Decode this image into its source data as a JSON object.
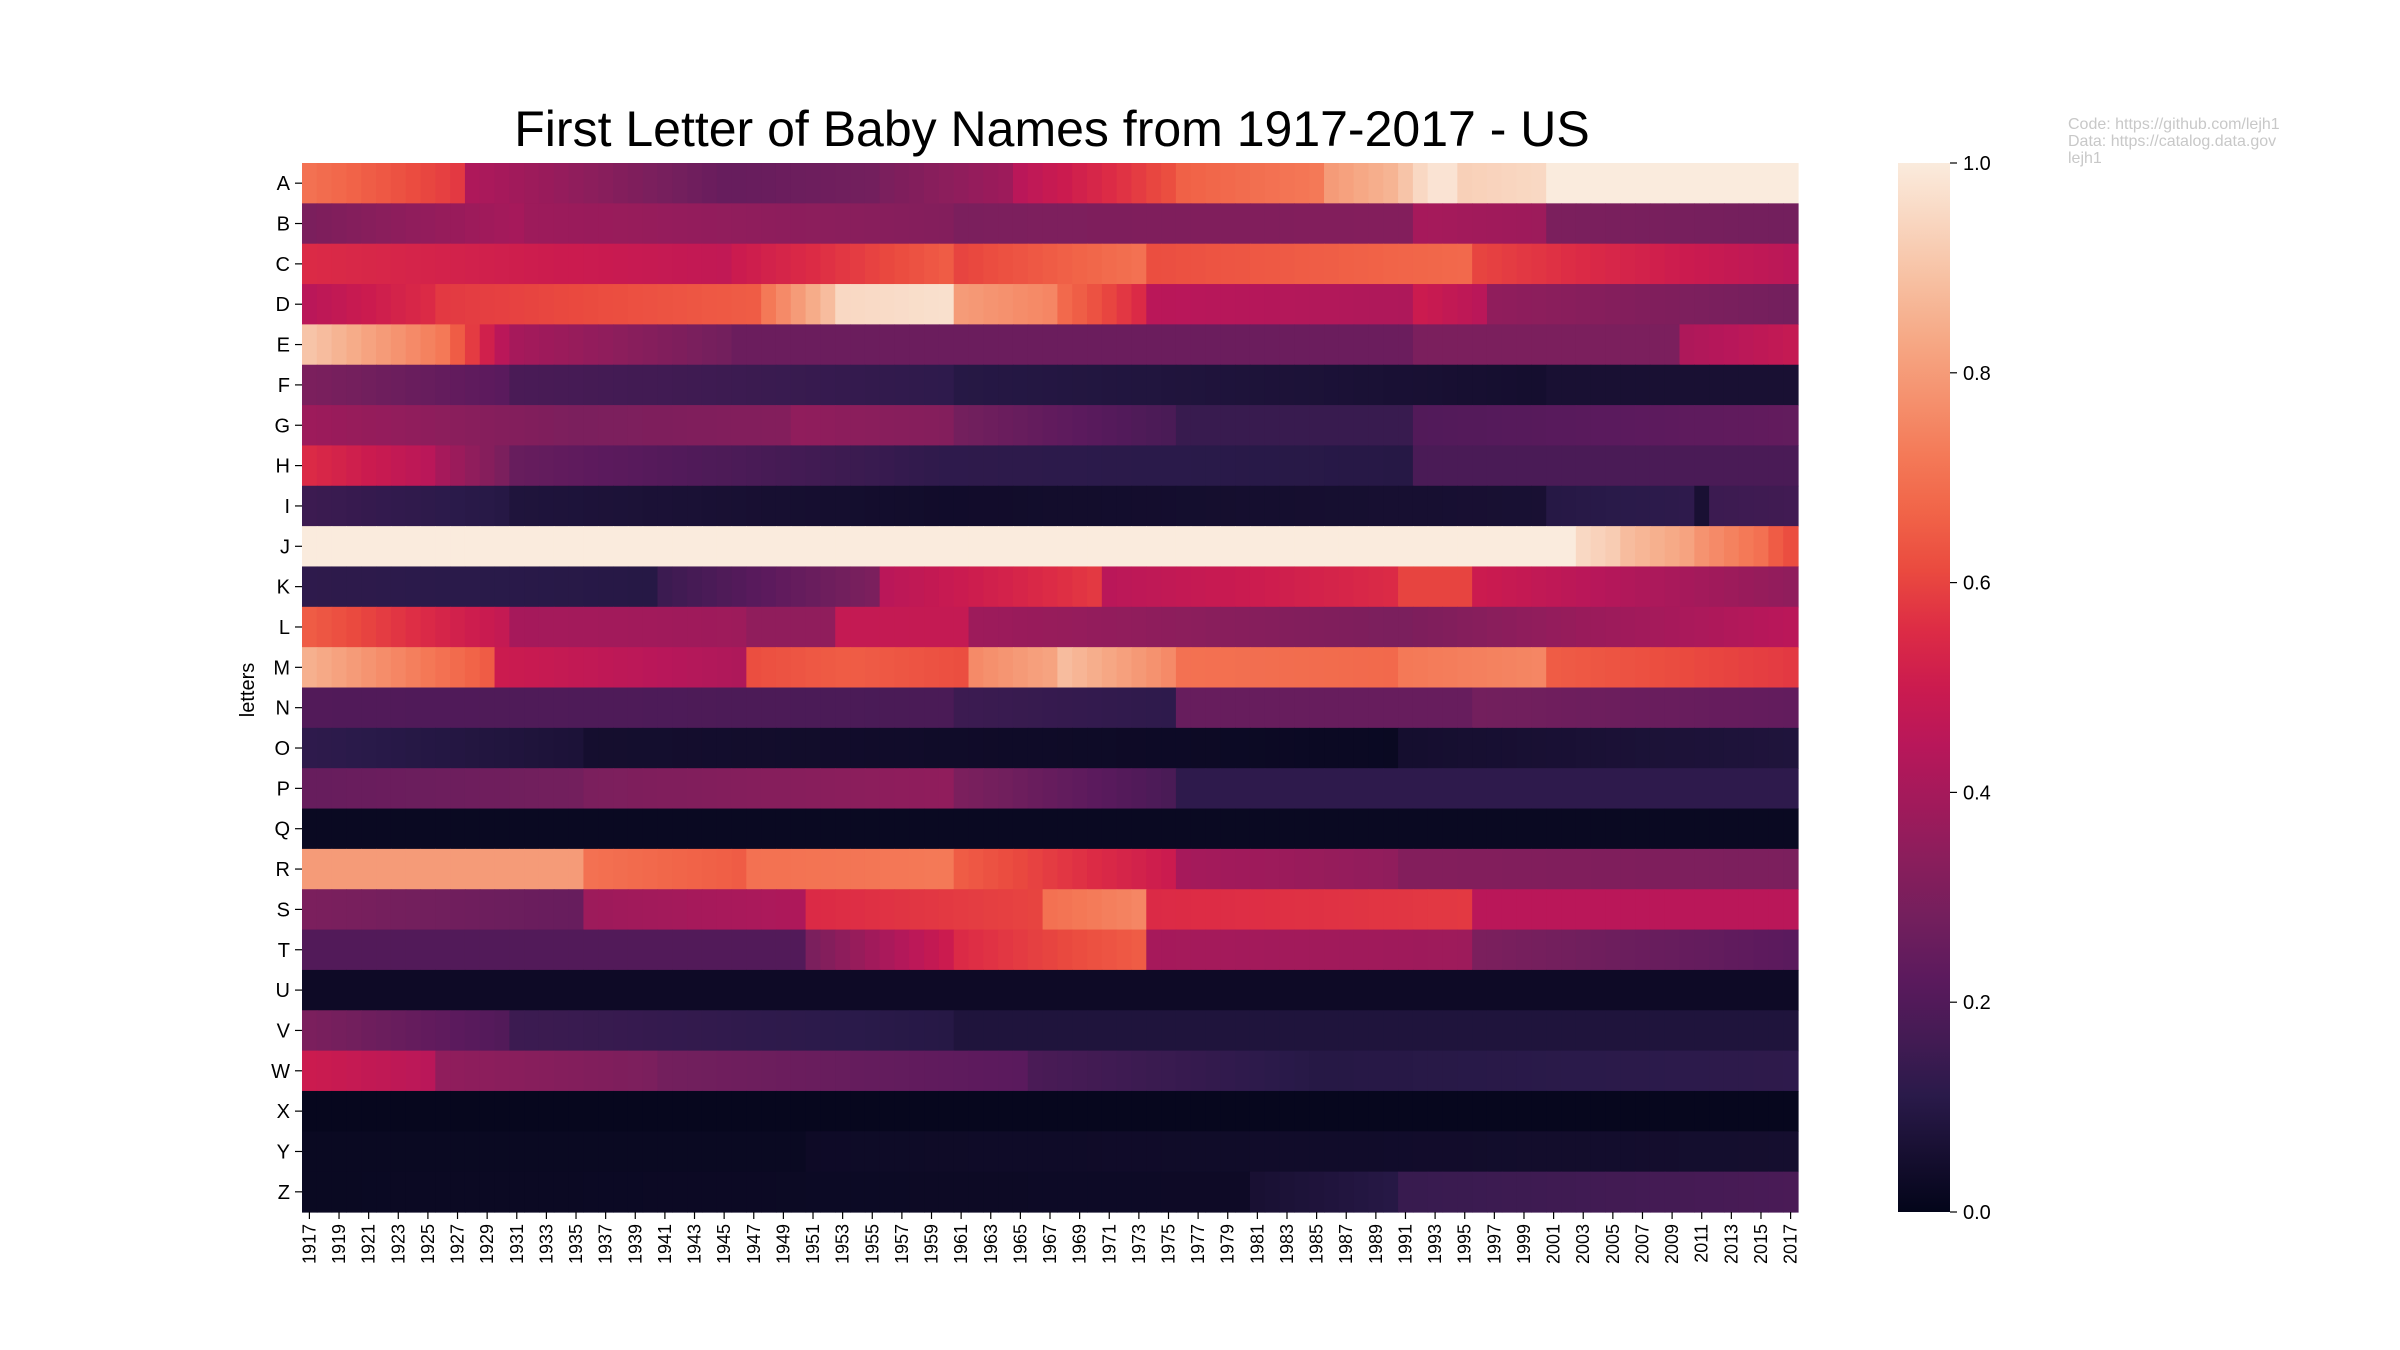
{
  "chart_data": {
    "type": "heatmap",
    "title": "First Letter of Baby Names from 1917-2017 - US",
    "ylabel": "letters",
    "xlabel": "",
    "rows": [
      "A",
      "B",
      "C",
      "D",
      "E",
      "F",
      "G",
      "H",
      "I",
      "J",
      "K",
      "L",
      "M",
      "N",
      "O",
      "P",
      "Q",
      "R",
      "S",
      "T",
      "U",
      "V",
      "W",
      "X",
      "Y",
      "Z"
    ],
    "columns": [
      1917,
      1918,
      1919,
      1920,
      1921,
      1922,
      1923,
      1924,
      1925,
      1926,
      1927,
      1928,
      1929,
      1930,
      1931,
      1932,
      1933,
      1934,
      1935,
      1936,
      1937,
      1938,
      1939,
      1940,
      1941,
      1942,
      1943,
      1944,
      1945,
      1946,
      1947,
      1948,
      1949,
      1950,
      1951,
      1952,
      1953,
      1954,
      1955,
      1956,
      1957,
      1958,
      1959,
      1960,
      1961,
      1962,
      1963,
      1964,
      1965,
      1966,
      1967,
      1968,
      1969,
      1970,
      1971,
      1972,
      1973,
      1974,
      1975,
      1976,
      1977,
      1978,
      1979,
      1980,
      1981,
      1982,
      1983,
      1984,
      1985,
      1986,
      1987,
      1988,
      1989,
      1990,
      1991,
      1992,
      1993,
      1994,
      1995,
      1996,
      1997,
      1998,
      1999,
      2000,
      2001,
      2002,
      2003,
      2004,
      2005,
      2006,
      2007,
      2008,
      2009,
      2010,
      2011,
      2012,
      2013,
      2014,
      2015,
      2016,
      2017
    ],
    "x_tick_labels": [
      "1917",
      "1919",
      "1921",
      "1923",
      "1925",
      "1927",
      "1929",
      "1931",
      "1933",
      "1935",
      "1937",
      "1939",
      "1941",
      "1943",
      "1945",
      "1947",
      "1949",
      "1951",
      "1953",
      "1955",
      "1957",
      "1959",
      "1961",
      "1963",
      "1965",
      "1967",
      "1969",
      "1971",
      "1973",
      "1975",
      "1977",
      "1979",
      "1981",
      "1983",
      "1985",
      "1987",
      "1989",
      "1991",
      "1993",
      "1995",
      "1997",
      "1999",
      "2001",
      "2003",
      "2005",
      "2007",
      "2009",
      "2011",
      "2013",
      "2015",
      "2017"
    ],
    "value_range": [
      0.0,
      1.0
    ],
    "note": "Cell values are approximate, read from the color scale; each row lists [first_year, last_year, start_value, end_value] segments linearly interpolated across years.",
    "segments": {
      "A": [
        [
          1917,
          1927,
          0.7,
          0.58
        ],
        [
          1928,
          1945,
          0.42,
          0.25
        ],
        [
          1946,
          1955,
          0.25,
          0.28
        ],
        [
          1956,
          1964,
          0.3,
          0.38
        ],
        [
          1965,
          1975,
          0.45,
          0.62
        ],
        [
          1976,
          1985,
          0.66,
          0.72
        ],
        [
          1986,
          1990,
          0.8,
          0.86
        ],
        [
          1991,
          1992,
          0.9,
          0.95
        ],
        [
          1993,
          1994,
          0.98,
          0.98
        ],
        [
          1995,
          2000,
          0.93,
          0.95
        ],
        [
          2001,
          2017,
          1.0,
          1.0
        ]
      ],
      "B": [
        [
          1917,
          1931,
          0.3,
          0.4
        ],
        [
          1932,
          1960,
          0.38,
          0.32
        ],
        [
          1961,
          1991,
          0.3,
          0.32
        ],
        [
          1992,
          2000,
          0.4,
          0.38
        ],
        [
          2001,
          2017,
          0.3,
          0.28
        ]
      ],
      "C": [
        [
          1917,
          1945,
          0.55,
          0.47
        ],
        [
          1946,
          1960,
          0.5,
          0.65
        ],
        [
          1961,
          1973,
          0.6,
          0.7
        ],
        [
          1974,
          1995,
          0.62,
          0.68
        ],
        [
          1996,
          2017,
          0.6,
          0.45
        ]
      ],
      "D": [
        [
          1917,
          1925,
          0.45,
          0.55
        ],
        [
          1926,
          1947,
          0.58,
          0.65
        ],
        [
          1948,
          1952,
          0.72,
          0.88
        ],
        [
          1953,
          1960,
          0.95,
          0.97
        ],
        [
          1961,
          1967,
          0.8,
          0.75
        ],
        [
          1968,
          1973,
          0.68,
          0.55
        ],
        [
          1974,
          1991,
          0.45,
          0.42
        ],
        [
          1992,
          1996,
          0.5,
          0.45
        ],
        [
          1997,
          2017,
          0.35,
          0.28
        ]
      ],
      "E": [
        [
          1917,
          1926,
          0.9,
          0.72
        ],
        [
          1927,
          1930,
          0.65,
          0.45
        ],
        [
          1931,
          1945,
          0.4,
          0.28
        ],
        [
          1946,
          1991,
          0.26,
          0.26
        ],
        [
          1992,
          2009,
          0.3,
          0.3
        ],
        [
          2010,
          2017,
          0.42,
          0.48
        ]
      ],
      "F": [
        [
          1917,
          1930,
          0.3,
          0.22
        ],
        [
          1931,
          1960,
          0.18,
          0.12
        ],
        [
          1961,
          2000,
          0.1,
          0.05
        ],
        [
          2001,
          2017,
          0.06,
          0.06
        ]
      ],
      "G": [
        [
          1917,
          1935,
          0.38,
          0.3
        ],
        [
          1936,
          1949,
          0.3,
          0.32
        ],
        [
          1950,
          1960,
          0.35,
          0.32
        ],
        [
          1961,
          1975,
          0.28,
          0.18
        ],
        [
          1976,
          1991,
          0.14,
          0.14
        ],
        [
          1992,
          2017,
          0.2,
          0.24
        ]
      ],
      "H": [
        [
          1917,
          1925,
          0.55,
          0.45
        ],
        [
          1926,
          1930,
          0.4,
          0.3
        ],
        [
          1931,
          1960,
          0.25,
          0.12
        ],
        [
          1961,
          1991,
          0.12,
          0.1
        ],
        [
          1992,
          2017,
          0.18,
          0.18
        ]
      ],
      "I": [
        [
          1917,
          1930,
          0.15,
          0.1
        ],
        [
          1931,
          1960,
          0.08,
          0.04
        ],
        [
          1961,
          2000,
          0.04,
          0.06
        ],
        [
          2001,
          2010,
          0.1,
          0.12
        ],
        [
          2011,
          2011,
          0.06,
          0.06
        ],
        [
          2012,
          2017,
          0.15,
          0.16
        ]
      ],
      "J": [
        [
          1917,
          2002,
          1.0,
          1.0
        ],
        [
          2003,
          2005,
          0.95,
          0.92
        ],
        [
          2006,
          2010,
          0.88,
          0.82
        ],
        [
          2011,
          2015,
          0.78,
          0.7
        ],
        [
          2016,
          2017,
          0.65,
          0.62
        ]
      ],
      "K": [
        [
          1917,
          1940,
          0.12,
          0.1
        ],
        [
          1941,
          1955,
          0.15,
          0.3
        ],
        [
          1956,
          1970,
          0.45,
          0.58
        ],
        [
          1971,
          1990,
          0.45,
          0.55
        ],
        [
          1991,
          1995,
          0.6,
          0.6
        ],
        [
          1996,
          2017,
          0.5,
          0.35
        ]
      ],
      "L": [
        [
          1917,
          1930,
          0.65,
          0.48
        ],
        [
          1931,
          1946,
          0.4,
          0.38
        ],
        [
          1947,
          1952,
          0.35,
          0.35
        ],
        [
          1953,
          1961,
          0.48,
          0.48
        ],
        [
          1962,
          1990,
          0.38,
          0.3
        ],
        [
          1991,
          2017,
          0.3,
          0.45
        ]
      ],
      "M": [
        [
          1917,
          1929,
          0.85,
          0.65
        ],
        [
          1930,
          1946,
          0.5,
          0.42
        ],
        [
          1947,
          1953,
          0.62,
          0.65
        ],
        [
          1954,
          1961,
          0.65,
          0.62
        ],
        [
          1962,
          1967,
          0.76,
          0.82
        ],
        [
          1968,
          1975,
          0.88,
          0.76
        ],
        [
          1976,
          1990,
          0.7,
          0.68
        ],
        [
          1991,
          2000,
          0.72,
          0.75
        ],
        [
          2001,
          2017,
          0.65,
          0.58
        ]
      ],
      "N": [
        [
          1917,
          1960,
          0.2,
          0.18
        ],
        [
          1961,
          1975,
          0.15,
          0.12
        ],
        [
          1976,
          1995,
          0.25,
          0.25
        ],
        [
          1996,
          2017,
          0.28,
          0.24
        ]
      ],
      "O": [
        [
          1917,
          1935,
          0.12,
          0.07
        ],
        [
          1936,
          1990,
          0.05,
          0.02
        ],
        [
          1991,
          2017,
          0.05,
          0.08
        ]
      ],
      "P": [
        [
          1917,
          1935,
          0.25,
          0.28
        ],
        [
          1936,
          1960,
          0.3,
          0.35
        ],
        [
          1961,
          1975,
          0.3,
          0.18
        ],
        [
          1976,
          2017,
          0.12,
          0.12
        ]
      ],
      "Q": [
        [
          1917,
          2017,
          0.02,
          0.02
        ]
      ],
      "R": [
        [
          1917,
          1935,
          0.8,
          0.8
        ],
        [
          1936,
          1946,
          0.7,
          0.65
        ],
        [
          1947,
          1960,
          0.7,
          0.72
        ],
        [
          1961,
          1975,
          0.65,
          0.5
        ],
        [
          1976,
          1990,
          0.4,
          0.35
        ],
        [
          1991,
          2017,
          0.32,
          0.3
        ]
      ],
      "S": [
        [
          1917,
          1935,
          0.3,
          0.25
        ],
        [
          1936,
          1950,
          0.38,
          0.42
        ],
        [
          1951,
          1966,
          0.55,
          0.6
        ],
        [
          1967,
          1973,
          0.7,
          0.75
        ],
        [
          1974,
          1995,
          0.55,
          0.58
        ],
        [
          1996,
          2017,
          0.45,
          0.45
        ]
      ],
      "T": [
        [
          1917,
          1950,
          0.2,
          0.2
        ],
        [
          1951,
          1960,
          0.3,
          0.5
        ],
        [
          1961,
          1973,
          0.55,
          0.65
        ],
        [
          1974,
          1995,
          0.4,
          0.38
        ],
        [
          1996,
          2017,
          0.3,
          0.22
        ]
      ],
      "U": [
        [
          1917,
          2017,
          0.03,
          0.03
        ]
      ],
      "V": [
        [
          1917,
          1930,
          0.3,
          0.2
        ],
        [
          1931,
          1960,
          0.15,
          0.1
        ],
        [
          1961,
          2017,
          0.08,
          0.08
        ]
      ],
      "W": [
        [
          1917,
          1925,
          0.5,
          0.45
        ],
        [
          1926,
          1940,
          0.35,
          0.3
        ],
        [
          1941,
          1965,
          0.28,
          0.22
        ],
        [
          1966,
          1985,
          0.18,
          0.1
        ],
        [
          1986,
          2017,
          0.1,
          0.12
        ]
      ],
      "X": [
        [
          1917,
          2017,
          0.01,
          0.01
        ]
      ],
      "Y": [
        [
          1917,
          1950,
          0.02,
          0.02
        ],
        [
          1951,
          1990,
          0.03,
          0.04
        ],
        [
          1991,
          2017,
          0.04,
          0.05
        ]
      ],
      "Z": [
        [
          1917,
          1980,
          0.02,
          0.03
        ],
        [
          1981,
          1990,
          0.06,
          0.1
        ],
        [
          1991,
          2017,
          0.14,
          0.18
        ]
      ]
    },
    "colorbar": {
      "ticks": [
        "0.0",
        "0.2",
        "0.4",
        "0.6",
        "0.8",
        "1.0"
      ],
      "colormap": [
        "#03051a",
        "#170f31",
        "#2a1a4a",
        "#441b54",
        "#5b1a5d",
        "#721f5d",
        "#891e5c",
        "#a11a5b",
        "#b8175a",
        "#cb1b4f",
        "#dd2c45",
        "#ea4a3f",
        "#f16448",
        "#f47a58",
        "#f5926f",
        "#f6a986",
        "#f7c0a2",
        "#f9d6c0",
        "#faebdd"
      ]
    }
  },
  "credits": {
    "code": "Code: https://github.com/lejh1",
    "data_line1": "Data: https://catalog.data.gov",
    "data_line2": "lejh1"
  }
}
